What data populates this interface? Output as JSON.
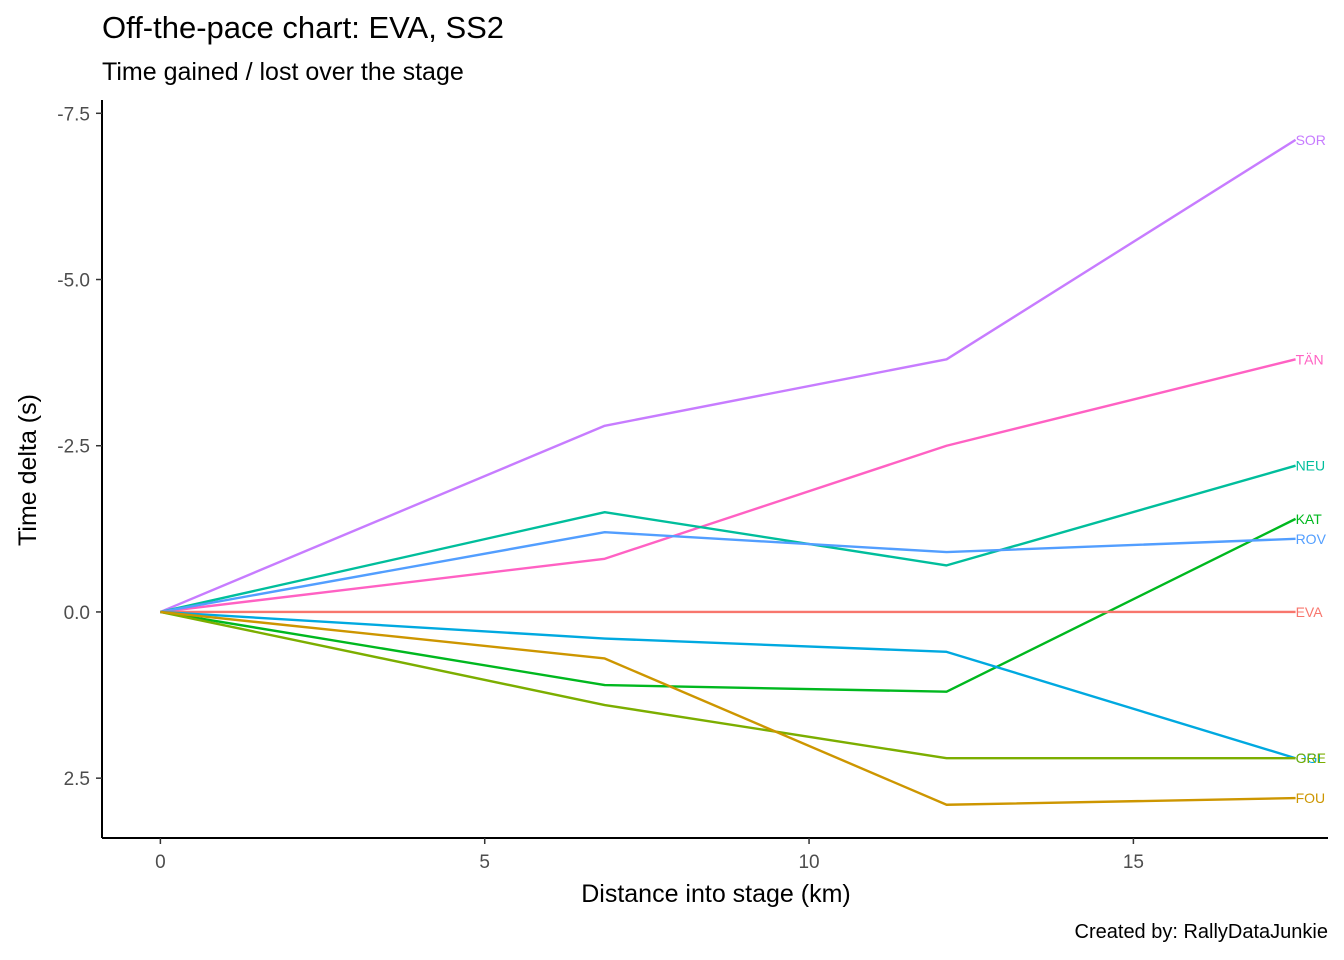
{
  "chart_data": {
    "type": "line",
    "title": "Off-the-pace chart: EVA, SS2",
    "subtitle": "Time gained / lost over the stage",
    "xlabel": "Distance into stage (km)",
    "ylabel": "Time delta (s)",
    "caption": "Created by: RallyDataJunkie",
    "xlim": [
      -0.9,
      18.0
    ],
    "ylim": [
      3.4,
      -7.7
    ],
    "y_reversed": true,
    "x_ticks": [
      0,
      5,
      10,
      15
    ],
    "x_tick_labels": [
      "0",
      "5",
      "10",
      "15"
    ],
    "y_ticks": [
      -7.5,
      -5.0,
      -2.5,
      0.0,
      2.5
    ],
    "y_tick_labels": [
      "-7.5",
      "-5.0",
      "-2.5",
      "0.0",
      "2.5"
    ],
    "grid": false,
    "legend": "none (end-of-line labels)",
    "x": [
      0,
      6.85,
      12.12,
      17.5
    ],
    "series": [
      {
        "name": "SOR",
        "color": "#C77CFF",
        "values": [
          0,
          -2.8,
          -3.8,
          -7.1
        ]
      },
      {
        "name": "TÄN",
        "color": "#FF61C3",
        "values": [
          0,
          -0.8,
          -2.5,
          -3.8
        ]
      },
      {
        "name": "NEU",
        "color": "#00BE9C",
        "values": [
          0,
          -1.5,
          -0.7,
          -2.2
        ]
      },
      {
        "name": "KAT",
        "color": "#00B81F",
        "values": [
          0,
          1.1,
          1.2,
          -1.4
        ]
      },
      {
        "name": "ROV",
        "color": "#529EFF",
        "values": [
          0,
          -1.2,
          -0.9,
          -1.1
        ]
      },
      {
        "name": "EVA",
        "color": "#F8766D",
        "values": [
          0,
          0,
          0,
          0
        ]
      },
      {
        "name": "OGI",
        "color": "#00A9E0",
        "values": [
          0,
          0.4,
          0.6,
          2.2
        ]
      },
      {
        "name": "GRE",
        "color": "#7CAE00",
        "values": [
          0,
          1.4,
          2.2,
          2.2
        ]
      },
      {
        "name": "FOU",
        "color": "#CD9600",
        "values": [
          0,
          0.7,
          2.9,
          2.8
        ]
      }
    ]
  }
}
